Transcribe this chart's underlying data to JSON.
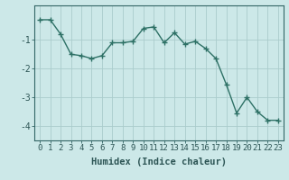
{
  "x": [
    0,
    1,
    2,
    3,
    4,
    5,
    6,
    7,
    8,
    9,
    10,
    11,
    12,
    13,
    14,
    15,
    16,
    17,
    18,
    19,
    20,
    21,
    22,
    23
  ],
  "y": [
    -0.3,
    -0.3,
    -0.8,
    -1.5,
    -1.55,
    -1.65,
    -1.55,
    -1.1,
    -1.1,
    -1.05,
    -0.6,
    -0.55,
    -1.1,
    -0.75,
    -1.15,
    -1.05,
    -1.3,
    -1.65,
    -2.55,
    -3.55,
    -3.0,
    -3.5,
    -3.8,
    -3.8
  ],
  "line_color": "#2d7065",
  "marker": "+",
  "marker_size": 4,
  "linewidth": 1.0,
  "background_color": "#cce8e8",
  "grid_color": "#aacccc",
  "ylim": [
    -4.5,
    0.2
  ],
  "xlim": [
    -0.5,
    23.5
  ],
  "yticks": [
    -4,
    -3,
    -2,
    -1
  ],
  "xtick_labels": [
    "0",
    "1",
    "2",
    "3",
    "4",
    "5",
    "6",
    "7",
    "8",
    "9",
    "10",
    "11",
    "12",
    "13",
    "14",
    "15",
    "16",
    "17",
    "18",
    "19",
    "20",
    "21",
    "22",
    "23"
  ],
  "xlabel": "Humidex (Indice chaleur)",
  "xlabel_fontsize": 7.5,
  "tick_fontsize": 6.5,
  "ytick_fontsize": 7,
  "spine_color": "#336666"
}
